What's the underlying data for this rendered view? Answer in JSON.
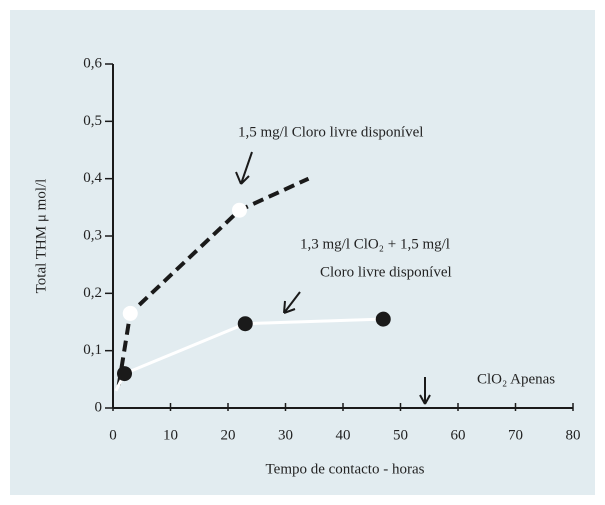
{
  "chart_data": {
    "type": "line",
    "xlabel": "Tempo de contacto - horas",
    "ylabel": "Total THM μ mol/l",
    "xlim": [
      0,
      80
    ],
    "xticks": [
      0,
      10,
      20,
      30,
      40,
      50,
      60,
      70,
      80
    ],
    "ylim": [
      0,
      0.6
    ],
    "yticks": [
      0,
      {
        "value": 0.1,
        "label": "0,1"
      },
      {
        "value": 0.2,
        "label": "0,2"
      },
      {
        "value": 0.3,
        "label": "0,3"
      },
      {
        "value": 0.4,
        "label": "0,4"
      },
      {
        "value": 0.5,
        "label": "0,5"
      },
      {
        "value": 0.6,
        "label": "0,6"
      }
    ],
    "series": [
      {
        "color": "#1a1a1a",
        "dashed": true,
        "marker_color": "#ffffff",
        "x": [
          1,
          3,
          22,
          34
        ],
        "values": [
          0.04,
          0.165,
          0.345,
          0.4
        ],
        "markers": [
          false,
          true,
          true,
          false
        ]
      },
      {
        "color": "#ffffff",
        "dashed": false,
        "marker_color": "#1a1a1a",
        "x": [
          0.5,
          2,
          23,
          47
        ],
        "values": [
          0.03,
          0.06,
          0.147,
          0.155
        ],
        "markers": [
          false,
          true,
          true,
          true
        ]
      }
    ],
    "annotations": [
      {
        "lines": [
          "1,5   mg/l   Cloro livre disponível"
        ]
      },
      {
        "lines": [
          "1,3  mg/l  ClO₂  +  1,5  mg/l",
          "Cloro livre disponível"
        ]
      },
      {
        "lines": [
          "ClO₂    Apenas"
        ]
      }
    ]
  }
}
